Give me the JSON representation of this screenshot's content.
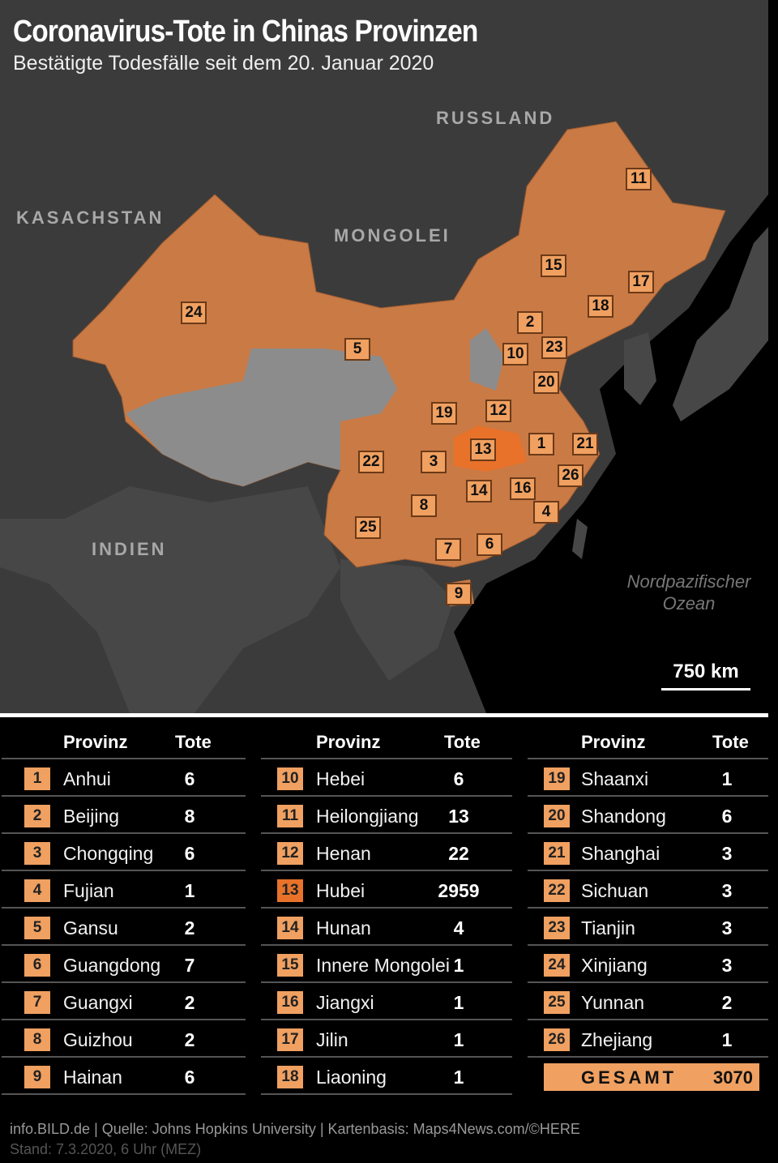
{
  "header": {
    "title": "Coronavirus-Tote in Chinas Provinzen",
    "subtitle": "Bestätigte Todesfälle seit dem 20. Januar 2020"
  },
  "map": {
    "countries": {
      "russland": "RUSSLAND",
      "kasachstan": "KASACHSTAN",
      "mongolei": "MONGOLEI",
      "indien": "INDIEN"
    },
    "ocean": [
      "Nordpazifischer",
      "Ozean"
    ],
    "scale": "750 km",
    "colors": {
      "china": "#c97a45",
      "hubei": "#e8722a",
      "no_deaths": "#8c8c8c",
      "land": "#4a4a4a",
      "sea": "#000000",
      "marker": "#f0a060"
    }
  },
  "table": {
    "col_province": "Provinz",
    "col_deaths": "Tote",
    "rows": [
      {
        "n": "1",
        "name": "Anhui",
        "deaths": "6"
      },
      {
        "n": "2",
        "name": "Beijing",
        "deaths": "8"
      },
      {
        "n": "3",
        "name": "Chongqing",
        "deaths": "6"
      },
      {
        "n": "4",
        "name": "Fujian",
        "deaths": "1"
      },
      {
        "n": "5",
        "name": "Gansu",
        "deaths": "2"
      },
      {
        "n": "6",
        "name": "Guangdong",
        "deaths": "7"
      },
      {
        "n": "7",
        "name": "Guangxi",
        "deaths": "2"
      },
      {
        "n": "8",
        "name": "Guizhou",
        "deaths": "2"
      },
      {
        "n": "9",
        "name": "Hainan",
        "deaths": "6"
      },
      {
        "n": "10",
        "name": "Hebei",
        "deaths": "6"
      },
      {
        "n": "11",
        "name": "Heilongjiang",
        "deaths": "13"
      },
      {
        "n": "12",
        "name": "Henan",
        "deaths": "22"
      },
      {
        "n": "13",
        "name": "Hubei",
        "deaths": "2959"
      },
      {
        "n": "14",
        "name": "Hunan",
        "deaths": "4"
      },
      {
        "n": "15",
        "name": "Innere Mongolei",
        "deaths": "1"
      },
      {
        "n": "16",
        "name": "Jiangxi",
        "deaths": "1"
      },
      {
        "n": "17",
        "name": "Jilin",
        "deaths": "1"
      },
      {
        "n": "18",
        "name": "Liaoning",
        "deaths": "1"
      },
      {
        "n": "19",
        "name": "Shaanxi",
        "deaths": "1"
      },
      {
        "n": "20",
        "name": "Shandong",
        "deaths": "6"
      },
      {
        "n": "21",
        "name": "Shanghai",
        "deaths": "3"
      },
      {
        "n": "22",
        "name": "Sichuan",
        "deaths": "3"
      },
      {
        "n": "23",
        "name": "Tianjin",
        "deaths": "3"
      },
      {
        "n": "24",
        "name": "Xinjiang",
        "deaths": "3"
      },
      {
        "n": "25",
        "name": "Yunnan",
        "deaths": "2"
      },
      {
        "n": "26",
        "name": "Zhejiang",
        "deaths": "1"
      }
    ],
    "total_label": "GESAMT",
    "total": "3070"
  },
  "footer": {
    "source": "info.BILD.de | Quelle: Johns Hopkins University | Kartenbasis: Maps4News.com/©HERE",
    "stand": "Stand: 7.3.2020, 6 Uhr (MEZ)"
  }
}
